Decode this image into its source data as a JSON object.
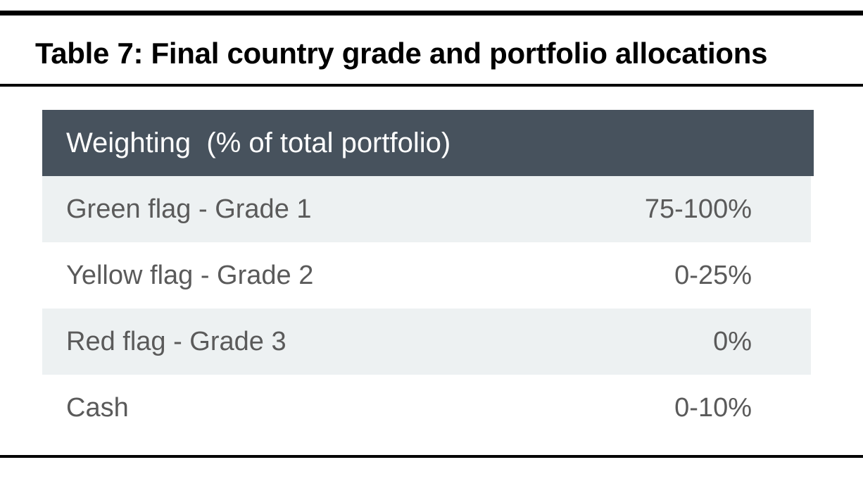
{
  "title": "Table 7: Final country grade and portfolio allocations",
  "table": {
    "header": "Weighting  (% of total portfolio)",
    "rows": [
      {
        "label": "Green flag - Grade 1",
        "value": "75-100%"
      },
      {
        "label": "Yellow flag - Grade 2",
        "value": "0-25%"
      },
      {
        "label": "Red flag - Grade 3",
        "value": "0%"
      },
      {
        "label": "Cash",
        "value": "0-10%"
      }
    ]
  },
  "colors": {
    "header_bg": "#47525d",
    "header_text": "#ffffff",
    "row_shade": "#edf1f2",
    "row_text": "#5a5a5a",
    "rule": "#000000"
  }
}
